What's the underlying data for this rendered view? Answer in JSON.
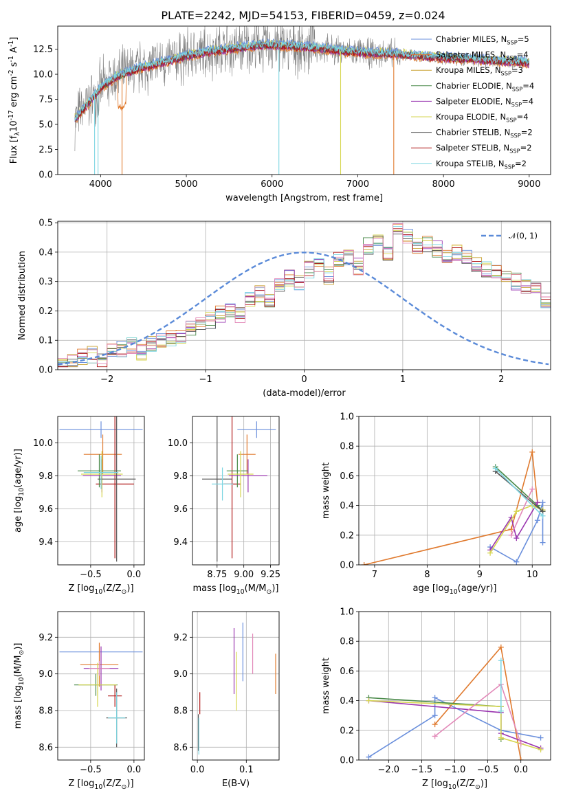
{
  "title": "PLATE=2242, MJD=54153, FIBERID=0459, z=0.024",
  "colors": [
    "#6a8fdc",
    "#e07a2e",
    "#c8a030",
    "#4a8a4a",
    "#9a36b0",
    "#d6d650",
    "#555555",
    "#b01818",
    "#7dd6e2"
  ],
  "chart_data": [
    {
      "type": "line",
      "panel": "spectrum",
      "xlabel": "wavelength [Angstrom, rest frame]",
      "ylabel": "Flux [f$_\\lambda$10$^{-17}$ erg cm$^{-2}$ s$^{-1}$ A$^{-1}$]",
      "xlim": [
        3500,
        9250
      ],
      "ylim": [
        0,
        14.8
      ],
      "xticks": [
        4000,
        5000,
        6000,
        7000,
        8000,
        9000
      ],
      "yticks": [
        "0.0",
        "2.5",
        "5.0",
        "7.5",
        "10.0",
        "12.5"
      ],
      "yticks_values": [
        0,
        2.5,
        5,
        7.5,
        10,
        12.5
      ],
      "data_range": [
        3700,
        9000
      ],
      "model_continuum": {
        "x": [
          3700,
          3850,
          4000,
          4200,
          4500,
          4800,
          5000,
          5300,
          5600,
          5900,
          6200,
          6500,
          6800,
          7100,
          7400,
          7700,
          8000,
          8300,
          8600,
          8900,
          9000
        ],
        "y": [
          5.5,
          7.0,
          8.6,
          9.8,
          10.7,
          11.3,
          11.8,
          12.3,
          12.6,
          12.9,
          12.8,
          12.6,
          12.3,
          12.1,
          12.0,
          11.8,
          11.6,
          11.5,
          11.3,
          11.2,
          11.1
        ]
      },
      "legend": [
        "Chabrier MILES, N$_{SSP}$=5",
        "Salpeter MILES, N$_{SSP}$=4",
        "Kroupa MILES, N$_{SSP}$=3",
        "Chabrier ELODIE, N$_{SSP}$=4",
        "Salpeter ELODIE, N$_{SSP}$=4",
        "Kroupa ELODIE, N$_{SSP}$=4",
        "Chabrier STELIB, N$_{SSP}$=2",
        "Salpeter STELIB, N$_{SSP}$=2",
        "Kroupa STELIB, N$_{SSP}$=2"
      ]
    },
    {
      "type": "line",
      "panel": "normed",
      "xlabel": "(data-model)/error",
      "ylabel": "Normed distribution",
      "xlim": [
        -2.5,
        2.5
      ],
      "ylim": [
        0,
        0.505
      ],
      "xticks": [
        "−2",
        "−1",
        "0",
        "1",
        "2"
      ],
      "xticks_values": [
        -2,
        -1,
        0,
        1,
        2
      ],
      "yticks": [
        "0.0",
        "0.1",
        "0.2",
        "0.3",
        "0.4",
        "0.5"
      ],
      "yticks_values": [
        0,
        0.1,
        0.2,
        0.3,
        0.4,
        0.5
      ],
      "legend": [
        "$\\mathcal{N}(0, 1)$"
      ],
      "bins": {
        "start": -2.5,
        "width": 0.1
      },
      "series_heights": [
        [
          0.02,
          0.03,
          0.04,
          0.05,
          0.04,
          0.06,
          0.07,
          0.08,
          0.06,
          0.09,
          0.1,
          0.11,
          0.12,
          0.14,
          0.15,
          0.17,
          0.19,
          0.21,
          0.19,
          0.24,
          0.26,
          0.24,
          0.29,
          0.31,
          0.3,
          0.34,
          0.36,
          0.32,
          0.37,
          0.38,
          0.35,
          0.42,
          0.44,
          0.4,
          0.47,
          0.46,
          0.42,
          0.43,
          0.41,
          0.39,
          0.4,
          0.38,
          0.36,
          0.34,
          0.33,
          0.31,
          0.3,
          0.28,
          0.27,
          0.24
        ]
      ],
      "normal_curve": {
        "mu": 0,
        "sigma": 1
      }
    },
    {
      "type": "scatter",
      "panel": "age_vs_Z",
      "xlabel": "Z [log$_{10}$(Z/Z$_\\odot$)]",
      "ylabel": "age  [log$_{10}$(age/yr)]",
      "xlim": [
        -0.88,
        0.12
      ],
      "ylim": [
        9.26,
        10.16
      ],
      "xticks": [
        "−0.5",
        "0.0"
      ],
      "xticks_values": [
        -0.5,
        0.0
      ],
      "yticks": [
        "9.4",
        "9.6",
        "9.8",
        "10.0"
      ],
      "yticks_values": [
        9.4,
        9.6,
        9.8,
        10.0
      ],
      "points": [
        {
          "c": 0,
          "x": -0.38,
          "y": 10.08,
          "xe": 0.48,
          "ye": 0.05
        },
        {
          "c": 1,
          "x": -0.36,
          "y": 9.93,
          "xe": 0.22,
          "ye": 0.12
        },
        {
          "c": 7,
          "x": -0.22,
          "y": 9.75,
          "xe": 0.22,
          "ye": 0.45
        },
        {
          "c": 3,
          "x": -0.4,
          "y": 9.83,
          "xe": 0.25,
          "ye": 0.1
        },
        {
          "c": 4,
          "x": -0.37,
          "y": 9.8,
          "xe": 0.22,
          "ye": 0.1
        },
        {
          "c": 5,
          "x": -0.37,
          "y": 9.81,
          "xe": 0.24,
          "ye": 0.14
        },
        {
          "c": 6,
          "x": -0.2,
          "y": 9.78,
          "xe": 0.22,
          "ye": 0.5
        },
        {
          "c": 8,
          "x": -0.38,
          "y": 9.82,
          "xe": 0.2,
          "ye": 0.1
        }
      ]
    },
    {
      "type": "scatter",
      "panel": "age_vs_mass",
      "xlabel": "mass [log$_{10}$(M/M$_\\odot$)]",
      "ylabel": "",
      "xlim": [
        8.52,
        9.33
      ],
      "ylim": [
        9.26,
        10.16
      ],
      "xticks": [
        "8.75",
        "9.00",
        "9.25"
      ],
      "xticks_values": [
        8.75,
        9.0,
        9.25
      ],
      "yticks": [
        "9.4",
        "9.6",
        "9.8",
        "10.0"
      ],
      "yticks_values": [
        9.4,
        9.6,
        9.8,
        10.0
      ],
      "points": [
        {
          "c": 0,
          "x": 9.12,
          "y": 10.08,
          "xe": 0.18,
          "ye": 0.05
        },
        {
          "c": 1,
          "x": 9.03,
          "y": 9.93,
          "xe": 0.08,
          "ye": 0.12
        },
        {
          "c": 7,
          "x": 8.89,
          "y": 9.75,
          "xe": 0.08,
          "ye": 0.45
        },
        {
          "c": 3,
          "x": 8.94,
          "y": 9.83,
          "xe": 0.1,
          "ye": 0.1
        },
        {
          "c": 4,
          "x": 9.04,
          "y": 9.8,
          "xe": 0.18,
          "ye": 0.1
        },
        {
          "c": 5,
          "x": 8.97,
          "y": 9.81,
          "xe": 0.12,
          "ye": 0.14
        },
        {
          "c": 6,
          "x": 8.75,
          "y": 9.78,
          "xe": 0.14,
          "ye": 0.5
        },
        {
          "c": 8,
          "x": 8.8,
          "y": 9.75,
          "xe": 0.1,
          "ye": 0.1
        }
      ]
    },
    {
      "type": "line",
      "panel": "weight_vs_age",
      "xlabel": "age  [log$_{10}$(age/yr)]",
      "ylabel": "mass weight",
      "xlim": [
        6.7,
        10.35
      ],
      "ylim": [
        0,
        1.0
      ],
      "xticks": [
        "7",
        "8",
        "9",
        "10"
      ],
      "xticks_values": [
        7,
        8,
        9,
        10
      ],
      "yticks": [
        "0.0",
        "0.2",
        "0.4",
        "0.6",
        "0.8",
        "1.0"
      ],
      "yticks_values": [
        0,
        0.2,
        0.4,
        0.6,
        0.8,
        1.0
      ],
      "series": [
        {
          "c": 0,
          "x": [
            9.2,
            9.7,
            10.1,
            10.2,
            10.2
          ],
          "y": [
            0.12,
            0.02,
            0.3,
            0.42,
            0.15
          ]
        },
        {
          "c": 1,
          "x": [
            6.8,
            9.6,
            10.0,
            10.1
          ],
          "y": [
            0.0,
            0.24,
            0.76,
            0.42
          ]
        },
        {
          "c": 3,
          "x": [
            9.3,
            10.1,
            10.2
          ],
          "y": [
            0.66,
            0.4,
            0.36
          ]
        },
        {
          "c": 4,
          "x": [
            9.2,
            9.6,
            9.7,
            10.1
          ],
          "y": [
            0.1,
            0.32,
            0.18,
            0.42
          ]
        },
        {
          "c": 5,
          "x": [
            9.2,
            9.7,
            10.0,
            10.2
          ],
          "y": [
            0.08,
            0.36,
            0.4,
            0.37
          ]
        },
        {
          "c": 6,
          "x": [
            9.3,
            10.2
          ],
          "y": [
            0.63,
            0.36
          ]
        },
        {
          "c": 9,
          "x": [
            9.6,
            10.0
          ],
          "y": [
            0.2,
            0.51
          ]
        },
        {
          "c": 8,
          "x": [
            9.3,
            10.2
          ],
          "y": [
            0.65,
            0.33
          ]
        }
      ]
    },
    {
      "type": "scatter",
      "panel": "mass_vs_Z",
      "xlabel": "Z [log$_{10}$(Z/Z$_\\odot$)]",
      "ylabel": "mass [log$_{10}$(M/M$_\\odot$)]",
      "xlim": [
        -0.88,
        0.12
      ],
      "ylim": [
        8.53,
        9.34
      ],
      "xticks": [
        "−0.5",
        "0.0"
      ],
      "xticks_values": [
        -0.5,
        0.0
      ],
      "yticks": [
        "8.6",
        "8.8",
        "9.0",
        "9.2"
      ],
      "yticks_values": [
        8.6,
        8.8,
        9.0,
        9.2
      ],
      "points": [
        {
          "c": 0,
          "x": -0.38,
          "y": 9.12,
          "xe": 0.48,
          "ye": 0.0
        },
        {
          "c": 1,
          "x": -0.4,
          "y": 9.05,
          "xe": 0.22,
          "ye": 0.12
        },
        {
          "c": 7,
          "x": -0.22,
          "y": 8.88,
          "xe": 0.08,
          "ye": 0.06
        },
        {
          "c": 3,
          "x": -0.44,
          "y": 8.94,
          "xe": 0.25,
          "ye": 0.06
        },
        {
          "c": 4,
          "x": -0.38,
          "y": 9.03,
          "xe": 0.2,
          "ye": 0.12
        },
        {
          "c": 5,
          "x": -0.42,
          "y": 8.94,
          "xe": 0.22,
          "ye": 0.12
        },
        {
          "c": 6,
          "x": -0.2,
          "y": 8.76,
          "xe": 0.12,
          "ye": 0.16
        },
        {
          "c": 9,
          "x": -0.4,
          "y": 9.03,
          "xe": 0.12,
          "ye": 0.04
        },
        {
          "c": 8,
          "x": -0.2,
          "y": 8.76,
          "xe": 0.1,
          "ye": 0.14
        }
      ]
    },
    {
      "type": "scatter",
      "panel": "mass_vs_ebv",
      "xlabel": "E(B-V)",
      "ylabel": "",
      "xlim": [
        -0.01,
        0.167
      ],
      "ylim": [
        8.53,
        9.34
      ],
      "xticks": [
        "0.0",
        "0.1"
      ],
      "xticks_values": [
        0.0,
        0.1
      ],
      "yticks": [
        "8.6",
        "8.8",
        "9.0",
        "9.2"
      ],
      "yticks_values": [
        8.6,
        8.8,
        9.0,
        9.2
      ],
      "points": [
        {
          "c": 0,
          "x": 0.093,
          "y": 9.12,
          "xe": 0.0,
          "ye": 0.16
        },
        {
          "c": 1,
          "x": 0.16,
          "y": 9.0,
          "xe": 0.0,
          "ye": 0.11
        },
        {
          "c": 7,
          "x": 0.005,
          "y": 8.84,
          "xe": 0.0,
          "ye": 0.06
        },
        {
          "c": 4,
          "x": 0.075,
          "y": 9.07,
          "xe": 0.0,
          "ye": 0.18
        },
        {
          "c": 5,
          "x": 0.08,
          "y": 8.96,
          "xe": 0.0,
          "ye": 0.16
        },
        {
          "c": 9,
          "x": 0.113,
          "y": 9.11,
          "xe": 0.0,
          "ye": 0.11
        },
        {
          "c": 6,
          "x": 0.002,
          "y": 8.68,
          "xe": 0.0,
          "ye": 0.1
        },
        {
          "c": 8,
          "x": 0.003,
          "y": 8.66,
          "xe": 0.0,
          "ye": 0.1
        }
      ]
    },
    {
      "type": "line",
      "panel": "weight_vs_Z",
      "xlabel": "Z [log$_{10}$(Z/Z$_\\odot$)]",
      "ylabel": "mass weight",
      "xlim": [
        -2.45,
        0.45
      ],
      "ylim": [
        0,
        1.0
      ],
      "xticks": [
        "−2.0",
        "−1.5",
        "−1.0",
        "−0.5",
        "0.0"
      ],
      "xticks_values": [
        -2.0,
        -1.5,
        -1.0,
        -0.5,
        0.0
      ],
      "yticks": [
        "0.0",
        "0.2",
        "0.4",
        "0.6",
        "0.8",
        "1.0"
      ],
      "yticks_values": [
        0,
        0.2,
        0.4,
        0.6,
        0.8,
        1.0
      ],
      "series": [
        {
          "c": 0,
          "x": [
            -2.3,
            -1.3,
            -1.3,
            -0.3,
            0.3
          ],
          "y": [
            0.02,
            0.3,
            0.42,
            0.2,
            0.15
          ]
        },
        {
          "c": 1,
          "x": [
            -1.3,
            -0.3,
            0.0
          ],
          "y": [
            0.24,
            0.76,
            0.0
          ]
        },
        {
          "c": 3,
          "x": [
            -2.3,
            -0.3,
            -0.3
          ],
          "y": [
            0.42,
            0.36,
            0.14
          ]
        },
        {
          "c": 4,
          "x": [
            -2.3,
            -0.3,
            -0.3,
            0.3
          ],
          "y": [
            0.4,
            0.32,
            0.18,
            0.08
          ]
        },
        {
          "c": 5,
          "x": [
            -2.3,
            -0.3,
            -0.3,
            0.0,
            0.3
          ],
          "y": [
            0.4,
            0.36,
            0.15,
            0.11,
            0.07
          ]
        },
        {
          "c": 9,
          "x": [
            -1.3,
            -0.3,
            0.0
          ],
          "y": [
            0.16,
            0.51,
            0.11
          ]
        },
        {
          "c": 8,
          "x": [
            -0.3,
            -0.3
          ],
          "y": [
            0.67,
            0.33
          ]
        }
      ]
    }
  ]
}
